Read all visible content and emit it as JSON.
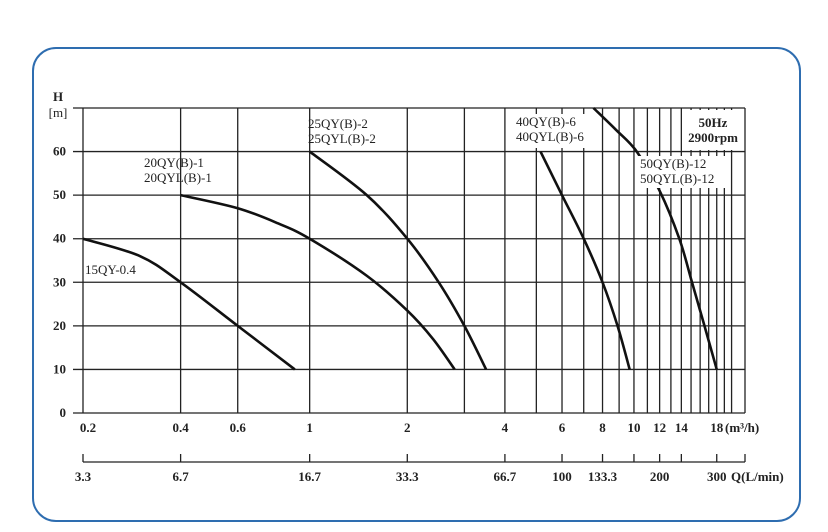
{
  "chart_data": {
    "type": "line",
    "title": "",
    "frequency_label": "50Hz",
    "speed_label": "2900rpm",
    "ylabel": "H",
    "yunit": "[m]",
    "xunit": "(m³/h)",
    "x2label": "Q(L/min)",
    "x_scale": "log",
    "xlim": [
      0.2,
      22
    ],
    "ylim": [
      0,
      70
    ],
    "grid": true,
    "yticks": [
      0,
      10,
      20,
      30,
      40,
      50,
      60
    ],
    "xticks": [
      {
        "value": 0.2,
        "label": "0.2"
      },
      {
        "value": 0.4,
        "label": "0.4"
      },
      {
        "value": 0.6,
        "label": "0.6"
      },
      {
        "value": 1,
        "label": "1"
      },
      {
        "value": 2,
        "label": "2"
      },
      {
        "value": 4,
        "label": "4"
      },
      {
        "value": 6,
        "label": "6"
      },
      {
        "value": 8,
        "label": "8"
      },
      {
        "value": 10,
        "label": "10"
      },
      {
        "value": 12,
        "label": "12"
      },
      {
        "value": 14,
        "label": "14"
      },
      {
        "value": 18,
        "label": "18"
      }
    ],
    "x_gridlines": [
      0.2,
      0.4,
      0.6,
      1,
      2,
      3,
      4,
      5,
      6,
      7,
      8,
      9,
      10,
      11,
      12,
      13,
      14,
      15,
      16,
      17,
      18,
      19,
      20
    ],
    "x2ticks": [
      {
        "value": 0.2,
        "label": "3.3"
      },
      {
        "value": 0.4,
        "label": "6.7"
      },
      {
        "value": 1,
        "label": "16.7"
      },
      {
        "value": 2,
        "label": "33.3"
      },
      {
        "value": 4,
        "label": "66.7"
      },
      {
        "value": 6,
        "label": "100"
      },
      {
        "value": 8,
        "label": "133.3"
      },
      {
        "value": 10,
        "label": ""
      },
      {
        "value": 12,
        "label": "200"
      },
      {
        "value": 14,
        "label": ""
      },
      {
        "value": 18,
        "label": "300"
      }
    ],
    "series": [
      {
        "name": "15QY-0.4",
        "labels": [
          "15QY-0.4"
        ],
        "x": [
          0.2,
          0.3,
          0.4,
          0.6,
          0.9
        ],
        "y": [
          40,
          36,
          30,
          20,
          10
        ]
      },
      {
        "name": "20QY(B)-1",
        "labels": [
          "20QY(B)-1",
          "20QYL(B)-1"
        ],
        "x": [
          0.4,
          0.6,
          0.8,
          1,
          1.5,
          2,
          2.4,
          2.8
        ],
        "y": [
          50,
          47,
          43.5,
          40,
          31.5,
          23.5,
          17,
          10
        ]
      },
      {
        "name": "25QY(B)-2",
        "labels": [
          "25QY(B)-2",
          "25QYL(B)-2"
        ],
        "x": [
          1,
          1.5,
          2,
          2.5,
          3,
          3.5
        ],
        "y": [
          60,
          50,
          40,
          30,
          20,
          10
        ]
      },
      {
        "name": "40QY(B)-6",
        "labels": [
          "40QY(B)-6",
          "40QYL(B)-6"
        ],
        "x": [
          5.15,
          6,
          7,
          8,
          8.9,
          9.7
        ],
        "y": [
          60,
          50,
          40,
          30,
          20,
          10
        ]
      },
      {
        "name": "50QY(B)-12",
        "labels": [
          "50QY(B)-12",
          "50QYL(B)-12"
        ],
        "x": [
          7.5,
          8.8,
          10.2,
          12,
          13.8,
          15.1,
          16.5,
          18
        ],
        "y": [
          70,
          65,
          60,
          51,
          40,
          30,
          20,
          10
        ]
      }
    ]
  }
}
